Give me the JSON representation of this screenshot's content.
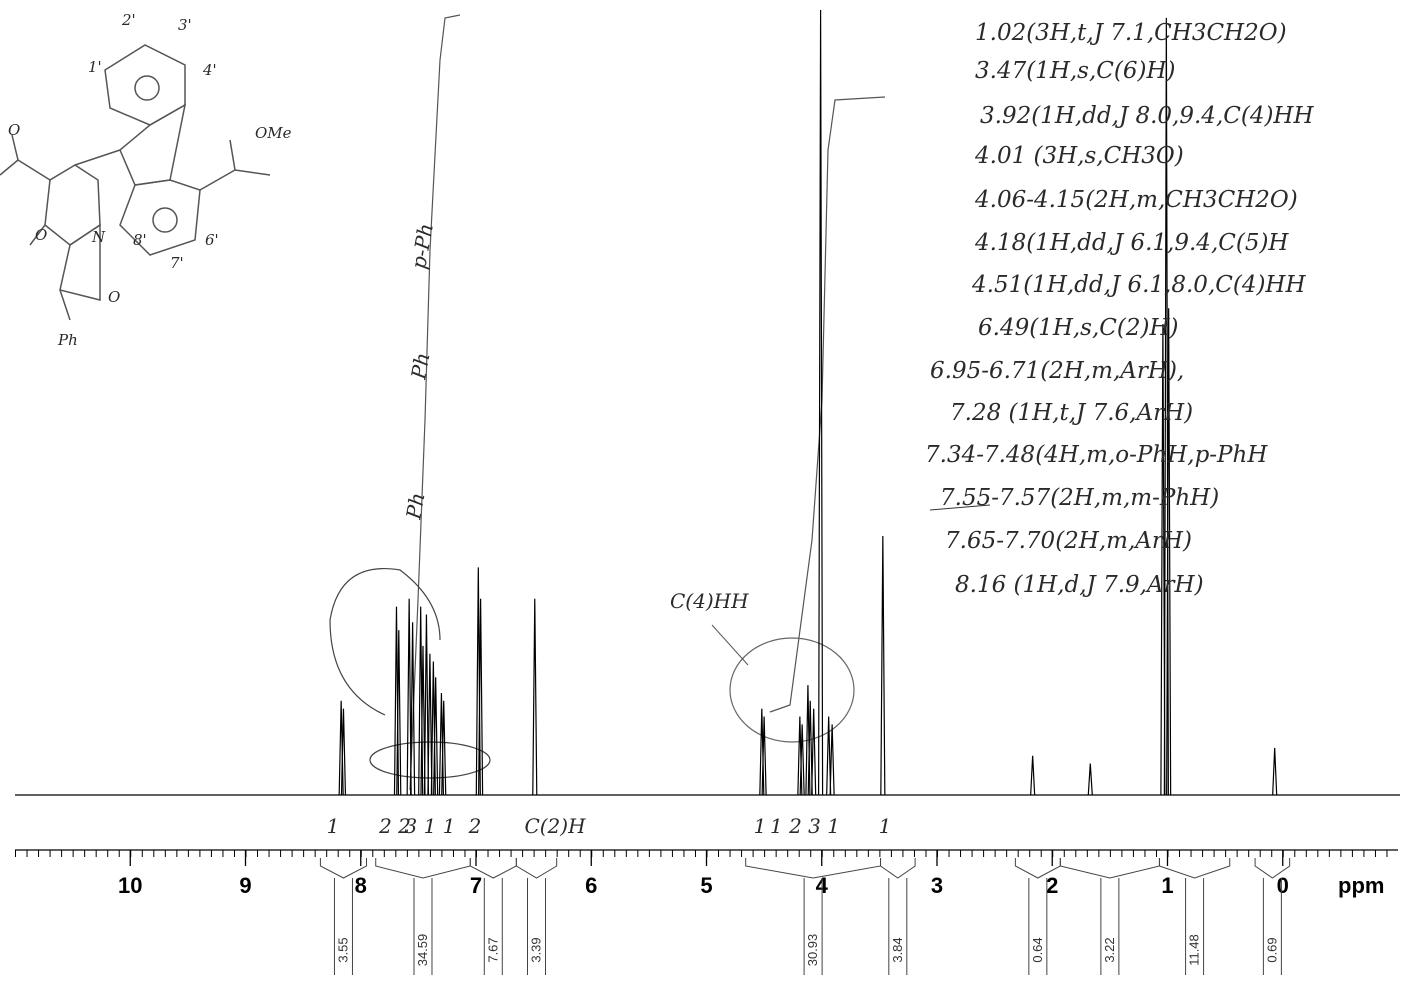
{
  "chart_data": {
    "type": "nmr",
    "x_label": "ppm",
    "xlim": [
      11,
      -1
    ],
    "xticks": [
      10,
      9,
      8,
      7,
      6,
      5,
      4,
      3,
      2,
      1,
      0
    ],
    "color": "#000000",
    "peaks": {
      "x": [
        8.17,
        8.15,
        7.69,
        7.67,
        7.58,
        7.55,
        7.48,
        7.46,
        7.43,
        7.4,
        7.37,
        7.35,
        7.3,
        7.28,
        6.98,
        6.96,
        6.49,
        4.52,
        4.5,
        4.19,
        4.17,
        4.12,
        4.1,
        4.07,
        4.01,
        3.94,
        3.91,
        3.47,
        2.17,
        1.67,
        1.04,
        1.01,
        0.99,
        0.07
      ],
      "values": [
        12,
        11,
        24,
        21,
        25,
        22,
        24,
        19,
        23,
        18,
        17,
        15,
        13,
        12,
        29,
        25,
        25,
        11,
        10,
        10,
        9,
        14,
        12,
        11,
        100,
        10,
        9,
        33,
        5,
        4,
        60,
        99,
        62,
        6
      ]
    },
    "integrals": [
      {
        "from": 8.35,
        "to": 7.95,
        "value": 3.55
      },
      {
        "from": 7.87,
        "to": 7.05,
        "value": 34.59
      },
      {
        "from": 7.05,
        "to": 6.65,
        "value": 7.67
      },
      {
        "from": 6.65,
        "to": 6.3,
        "value": 3.39
      },
      {
        "from": 4.66,
        "to": 3.49,
        "value": 30.93
      },
      {
        "from": 3.49,
        "to": 3.19,
        "value": 3.84
      },
      {
        "from": 2.32,
        "to": 1.93,
        "value": 0.64
      },
      {
        "from": 1.93,
        "to": 1.07,
        "value": 3.22
      },
      {
        "from": 1.07,
        "to": 0.46,
        "value": 11.48
      },
      {
        "from": 0.24,
        "to": -0.06,
        "value": 0.69
      }
    ],
    "annotations": [
      "1.02(3H,t,J 7.1,CH3CH2O)",
      "3.47(1H,s,C(6)H)",
      "3.92(1H,dd,J 8.0,9.4,C(4)HH",
      "4.01 (3H,s,CH3O)",
      "4.06-4.15(2H,m,CH3CH2O)",
      "4.18(1H,dd,J 6.1,9.4,C(5)H",
      "4.51(1H,dd,J 6.1,8.0,C(4)HH",
      "6.49(1H,s,C(2)H)",
      "6.95-6.71(2H,m,ArH),",
      "7.28 (1H,t,J 7.6,ArH)",
      "7.34-7.48(4H,m,o-PhH,p-PhH",
      "7.55-7.57(2H,m,m-PhH)",
      "7.65-7.70(2H,m,ArH)",
      "8.16 (1H,d,J 7.9,ArH)"
    ],
    "peak_labels": [
      "1",
      "2 2",
      "3 1 1",
      "2",
      "C(2)H",
      "1",
      "1 2 3 1",
      "1"
    ],
    "region_labels": [
      "C(4)HH",
      "p-Ph",
      "Ph",
      "Ph"
    ],
    "structure_labels": [
      "1'",
      "2'",
      "3'",
      "4'",
      "OMe",
      "6'",
      "7'",
      "8'",
      "O",
      "O",
      "N",
      "O",
      "Ph"
    ]
  }
}
